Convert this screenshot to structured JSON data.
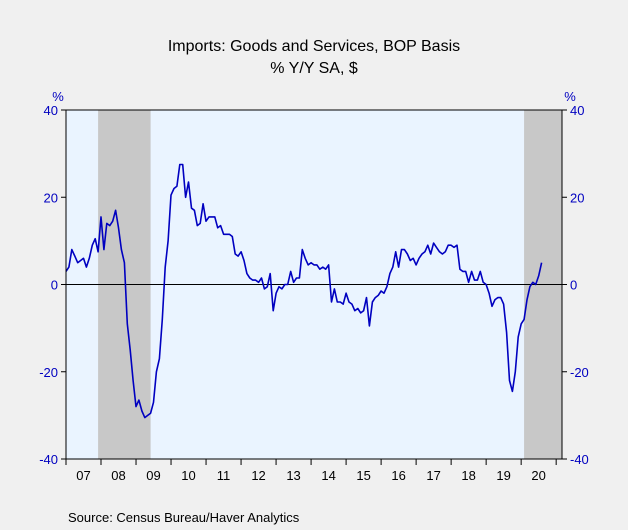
{
  "chart_data": {
    "type": "line",
    "title": "Imports: Goods and Services, BOP Basis",
    "subtitle": "% Y/Y   SA, $",
    "y_unit_left": "%",
    "y_unit_right": "%",
    "ylim": [
      -40,
      40
    ],
    "yticks": [
      40,
      20,
      0,
      -20,
      -40
    ],
    "ytick_labels": [
      "40",
      "20",
      "0",
      "-20",
      "-40"
    ],
    "x_tick_labels": [
      "07",
      "08",
      "09",
      "10",
      "11",
      "12",
      "13",
      "14",
      "15",
      "16",
      "17",
      "18",
      "19",
      "20"
    ],
    "xlim": [
      "2007-01",
      "2021-03"
    ],
    "source": "Source:   Census Bureau/Haver Analytics",
    "zero_line": true,
    "grid": false,
    "colors": {
      "line": "#0000c0",
      "plot_bg": "#eaf4ff",
      "recession": "#c8c8c8",
      "page_bg": "#f0f0f0"
    },
    "recessions": [
      {
        "start": "2007-12",
        "end": "2009-06"
      },
      {
        "start": "2020-02",
        "end": "2021-03"
      }
    ],
    "series": [
      {
        "start": "2007-01",
        "values": [
          3,
          4,
          8,
          6.5,
          5,
          5.5,
          6,
          4,
          6,
          9,
          10.5,
          7.5,
          15.5,
          8,
          14,
          13.5,
          14.5,
          17,
          13,
          8,
          5,
          -9,
          -15,
          -22,
          -28,
          -26.5,
          -29,
          -30.5,
          -30,
          -29.5,
          -27,
          -20,
          -17,
          -8,
          4,
          10,
          20.5,
          22,
          22.5,
          27.5,
          27.5,
          20,
          23.5,
          17.5,
          17,
          13.5,
          14,
          18.5,
          14.5,
          15.5,
          15.5,
          15.5,
          13,
          13.5,
          11.5,
          11.5,
          11.5,
          11,
          7,
          6.5,
          7.5,
          5.5,
          2.5,
          1.5,
          1,
          1,
          0.5,
          1.5,
          -1,
          -0.5,
          2.5,
          -6,
          -2,
          -0.5,
          -1,
          0,
          0,
          3,
          0.5,
          1.5,
          1.5,
          8,
          6,
          4.5,
          5,
          4.5,
          4.5,
          3.5,
          4,
          3.5,
          4.5,
          -4,
          -1,
          -4,
          -4,
          -4.5,
          -2,
          -4,
          -4.5,
          -6,
          -5.5,
          -6.5,
          -6,
          -3,
          -9.5,
          -4,
          -3,
          -2.5,
          -1.5,
          -2,
          -0.5,
          2.5,
          4,
          7.5,
          4,
          8,
          8,
          7,
          5.5,
          6,
          4.5,
          6,
          7,
          7.5,
          9,
          7,
          9.5,
          8.5,
          7.5,
          7,
          7.5,
          9,
          9,
          8.5,
          9,
          3.5,
          3,
          3,
          0.5,
          3,
          1,
          1,
          3,
          0.5,
          0,
          -2,
          -5,
          -3.5,
          -3,
          -3,
          -4.5,
          -11,
          -22,
          -24.5,
          -20,
          -12,
          -9,
          -8,
          -3.5,
          -0.5,
          0.5,
          0,
          2,
          5
        ]
      }
    ]
  }
}
